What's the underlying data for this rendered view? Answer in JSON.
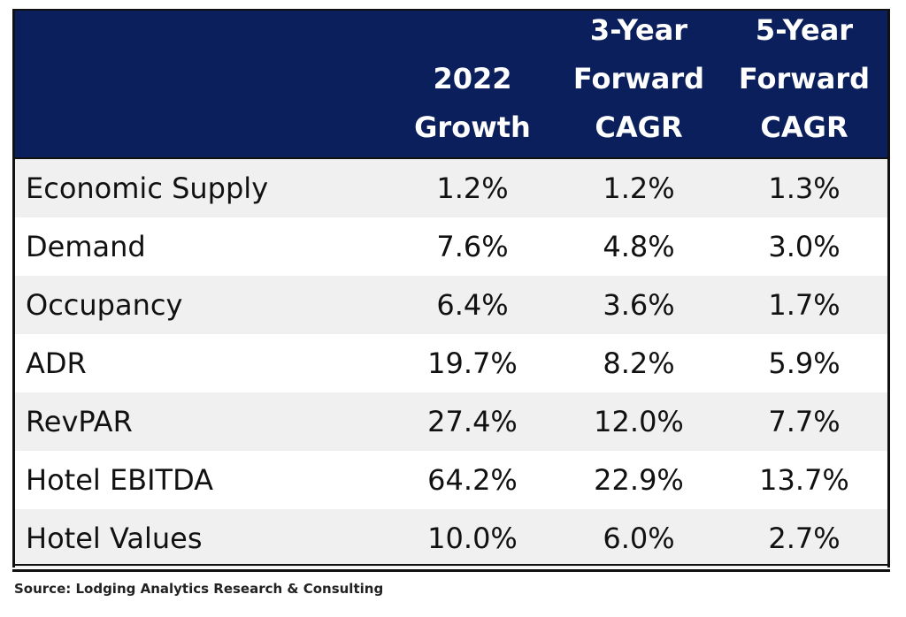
{
  "chart_data": {
    "type": "table",
    "columns": [
      "",
      "2022 Growth",
      "3-Year Forward CAGR",
      "5-Year Forward CAGR"
    ],
    "header_lines": [
      [
        "2022",
        "Growth"
      ],
      [
        "3-Year",
        "Forward",
        "CAGR"
      ],
      [
        "5-Year",
        "Forward",
        "CAGR"
      ]
    ],
    "rows": [
      {
        "label": "Economic Supply",
        "values": [
          "1.2%",
          "1.2%",
          "1.3%"
        ]
      },
      {
        "label": "Demand",
        "values": [
          "7.6%",
          "4.8%",
          "3.0%"
        ]
      },
      {
        "label": "Occupancy",
        "values": [
          "6.4%",
          "3.6%",
          "1.7%"
        ]
      },
      {
        "label": "ADR",
        "values": [
          "19.7%",
          "8.2%",
          "5.9%"
        ]
      },
      {
        "label": "RevPAR",
        "values": [
          "27.4%",
          "12.0%",
          "7.7%"
        ]
      },
      {
        "label": "Hotel EBITDA",
        "values": [
          "64.2%",
          "22.9%",
          "13.7%"
        ]
      },
      {
        "label": "Hotel Values",
        "values": [
          "10.0%",
          "6.0%",
          "2.7%"
        ]
      }
    ],
    "source": "Source: Lodging Analytics Research & Consulting"
  },
  "colors": {
    "header_bg": "#0a1f5c",
    "stripe": "#f0f0f0"
  }
}
